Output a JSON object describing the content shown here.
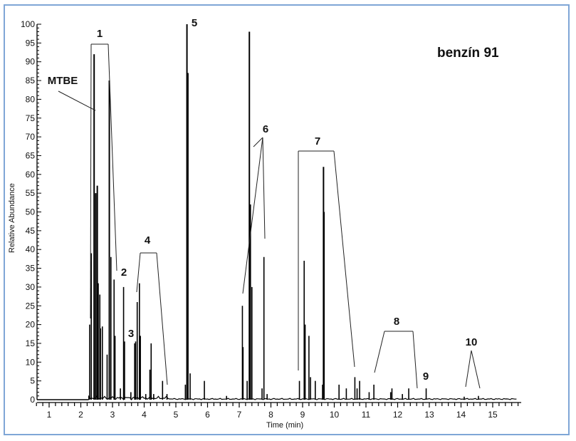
{
  "chart_data": {
    "type": "line",
    "subtype": "chromatogram",
    "title": "benzín 91",
    "xlabel": "Time (min)",
    "ylabel": "Relative Abundance",
    "xlim": [
      0.5,
      15.9
    ],
    "ylim": [
      0,
      100
    ],
    "x_ticks": [
      1,
      2,
      3,
      4,
      5,
      6,
      7,
      8,
      9,
      10,
      11,
      12,
      13,
      14,
      15
    ],
    "y_ticks": [
      0,
      5,
      10,
      15,
      20,
      25,
      30,
      35,
      40,
      45,
      50,
      55,
      60,
      65,
      70,
      75,
      80,
      85,
      90,
      95,
      100
    ],
    "grid": false,
    "legend": null,
    "peaks": [
      {
        "x": 2.28,
        "y": 20
      },
      {
        "x": 2.33,
        "y": 39
      },
      {
        "x": 2.42,
        "y": 92
      },
      {
        "x": 2.47,
        "y": 55
      },
      {
        "x": 2.52,
        "y": 57
      },
      {
        "x": 2.55,
        "y": 31
      },
      {
        "x": 2.6,
        "y": 28
      },
      {
        "x": 2.62,
        "y": 19
      },
      {
        "x": 2.68,
        "y": 19.5
      },
      {
        "x": 2.83,
        "y": 12
      },
      {
        "x": 2.9,
        "y": 85
      },
      {
        "x": 2.95,
        "y": 38
      },
      {
        "x": 3.05,
        "y": 32
      },
      {
        "x": 3.08,
        "y": 17
      },
      {
        "x": 3.25,
        "y": 3
      },
      {
        "x": 3.35,
        "y": 30
      },
      {
        "x": 3.38,
        "y": 15.5
      },
      {
        "x": 3.58,
        "y": 2
      },
      {
        "x": 3.7,
        "y": 15
      },
      {
        "x": 3.73,
        "y": 15.5
      },
      {
        "x": 3.78,
        "y": 26
      },
      {
        "x": 3.85,
        "y": 31
      },
      {
        "x": 3.88,
        "y": 17
      },
      {
        "x": 4.05,
        "y": 1.5
      },
      {
        "x": 4.18,
        "y": 8
      },
      {
        "x": 4.22,
        "y": 15
      },
      {
        "x": 4.3,
        "y": 1.5
      },
      {
        "x": 4.58,
        "y": 5
      },
      {
        "x": 4.72,
        "y": 1.5
      },
      {
        "x": 5.3,
        "y": 4
      },
      {
        "x": 5.35,
        "y": 100
      },
      {
        "x": 5.38,
        "y": 87
      },
      {
        "x": 5.45,
        "y": 7
      },
      {
        "x": 5.9,
        "y": 5
      },
      {
        "x": 6.6,
        "y": 1
      },
      {
        "x": 7.1,
        "y": 25
      },
      {
        "x": 7.12,
        "y": 14
      },
      {
        "x": 7.25,
        "y": 5
      },
      {
        "x": 7.32,
        "y": 98
      },
      {
        "x": 7.35,
        "y": 52
      },
      {
        "x": 7.4,
        "y": 30
      },
      {
        "x": 7.72,
        "y": 3
      },
      {
        "x": 7.78,
        "y": 38
      },
      {
        "x": 7.88,
        "y": 1.5
      },
      {
        "x": 8.9,
        "y": 5
      },
      {
        "x": 9.05,
        "y": 37
      },
      {
        "x": 9.08,
        "y": 20
      },
      {
        "x": 9.2,
        "y": 17
      },
      {
        "x": 9.25,
        "y": 6
      },
      {
        "x": 9.4,
        "y": 5
      },
      {
        "x": 9.63,
        "y": 4
      },
      {
        "x": 9.66,
        "y": 62
      },
      {
        "x": 9.68,
        "y": 50
      },
      {
        "x": 10.15,
        "y": 4
      },
      {
        "x": 10.38,
        "y": 3
      },
      {
        "x": 10.65,
        "y": 6
      },
      {
        "x": 10.72,
        "y": 3
      },
      {
        "x": 10.8,
        "y": 5
      },
      {
        "x": 11.1,
        "y": 2
      },
      {
        "x": 11.25,
        "y": 4
      },
      {
        "x": 11.78,
        "y": 2
      },
      {
        "x": 11.82,
        "y": 3
      },
      {
        "x": 12.15,
        "y": 1.5
      },
      {
        "x": 12.35,
        "y": 3
      },
      {
        "x": 12.9,
        "y": 3
      },
      {
        "x": 14.1,
        "y": 0.8
      },
      {
        "x": 14.55,
        "y": 1
      }
    ],
    "annotations": [
      {
        "label": "MTBE",
        "target_x": 2.42,
        "target_y": 77
      },
      {
        "label": "1",
        "range": [
          2.2,
          2.9
        ],
        "y": 95
      },
      {
        "label": "2",
        "x": 3.15,
        "y": 33
      },
      {
        "label": "3",
        "x": 3.58,
        "y": 17
      },
      {
        "label": "4",
        "range": [
          3.8,
          4.75
        ],
        "y": 39.5
      },
      {
        "label": "5",
        "x": 5.35,
        "y": 100
      },
      {
        "label": "6",
        "targets": [
          7.1,
          7.75
        ],
        "y": 67
      },
      {
        "label": "7",
        "range": [
          8.85,
          10.7
        ],
        "y": 66.5
      },
      {
        "label": "8",
        "range": [
          11.25,
          12.6
        ],
        "y": 18.5
      },
      {
        "label": "9",
        "x": 12.85,
        "y": 6
      },
      {
        "label": "10",
        "targets": [
          14.1,
          14.5
        ],
        "y": 13
      }
    ]
  },
  "labels": {
    "title": "benzín 91",
    "xlabel": "Time (min)",
    "ylabel": "Relative Abundance",
    "mtbe": "MTBE",
    "groups": [
      "1",
      "2",
      "3",
      "4",
      "5",
      "6",
      "7",
      "8",
      "9",
      "10"
    ]
  },
  "colors": {
    "frame_border": "#7fa6d6",
    "trace": "#000000",
    "background": "#ffffff"
  }
}
